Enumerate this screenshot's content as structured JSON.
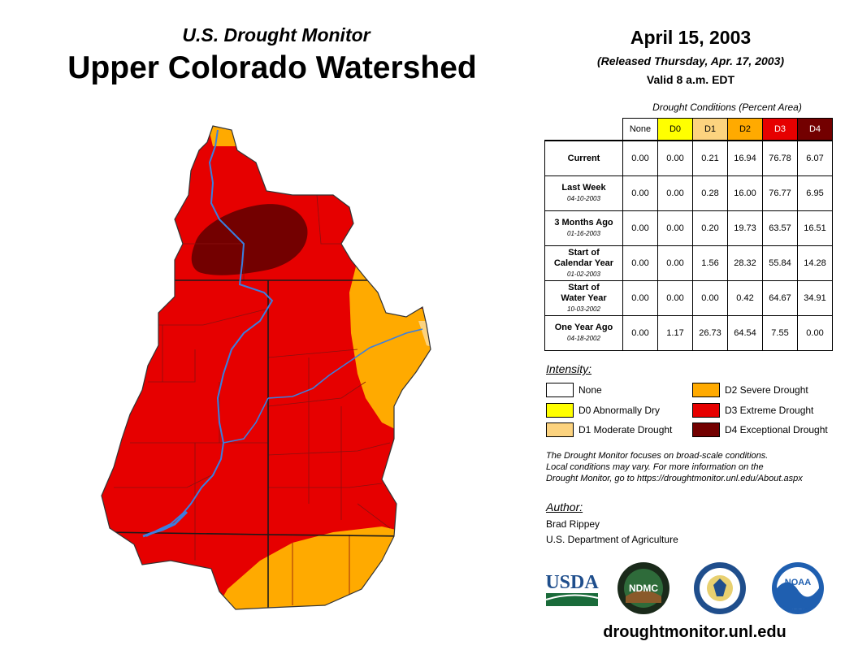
{
  "header": {
    "subtitle": "U.S. Drought Monitor",
    "title": "Upper Colorado Watershed",
    "date": "April 15, 2003",
    "released": "(Released Thursday, Apr. 17, 2003)",
    "valid": "Valid 8 a.m. EDT"
  },
  "table": {
    "caption": "Drought Conditions (Percent Area)",
    "columns": [
      "None",
      "D0",
      "D1",
      "D2",
      "D3",
      "D4"
    ],
    "rows": [
      {
        "label": "Current",
        "label2": "",
        "date": "",
        "values": [
          "0.00",
          "0.00",
          "0.21",
          "16.94",
          "76.78",
          "6.07"
        ]
      },
      {
        "label": "Last Week",
        "label2": "",
        "date": "04-10-2003",
        "values": [
          "0.00",
          "0.00",
          "0.28",
          "16.00",
          "76.77",
          "6.95"
        ]
      },
      {
        "label": "3 Months Ago",
        "label2": "",
        "date": "01-16-2003",
        "values": [
          "0.00",
          "0.00",
          "0.20",
          "19.73",
          "63.57",
          "16.51"
        ]
      },
      {
        "label": "Start of",
        "label2": "Calendar Year",
        "date": "01-02-2003",
        "values": [
          "0.00",
          "0.00",
          "1.56",
          "28.32",
          "55.84",
          "14.28"
        ]
      },
      {
        "label": "Start of",
        "label2": "Water Year",
        "date": "10-03-2002",
        "values": [
          "0.00",
          "0.00",
          "0.00",
          "0.42",
          "64.67",
          "34.91"
        ]
      },
      {
        "label": "One Year Ago",
        "label2": "",
        "date": "04-18-2002",
        "values": [
          "0.00",
          "1.17",
          "26.73",
          "64.54",
          "7.55",
          "0.00"
        ]
      }
    ]
  },
  "colors": {
    "none": "#ffffff",
    "d0": "#ffff00",
    "d1": "#fcd37f",
    "d2": "#ffaa00",
    "d3": "#e60000",
    "d4": "#730000",
    "river": "#3a7fe0"
  },
  "legend": {
    "title": "Intensity:",
    "items": [
      {
        "key": "none",
        "label": "None"
      },
      {
        "key": "d0",
        "label": "D0 Abnormally Dry"
      },
      {
        "key": "d1",
        "label": "D1 Moderate Drought"
      },
      {
        "key": "d2",
        "label": "D2 Severe Drought"
      },
      {
        "key": "d3",
        "label": "D3 Extreme Drought"
      },
      {
        "key": "d4",
        "label": "D4 Exceptional Drought"
      }
    ]
  },
  "note": {
    "line1": "The Drought Monitor focuses on broad-scale conditions.",
    "line2": "Local conditions may vary. For more information on the",
    "line3": "Drought Monitor, go to https://droughtmonitor.unl.edu/About.aspx"
  },
  "author": {
    "title": "Author:",
    "name": "Brad Rippey",
    "org": "U.S. Department of Agriculture"
  },
  "logos": {
    "usda": "USDA",
    "ndmc": "NDMC",
    "noaa": "NOAA"
  },
  "footer": {
    "url": "droughtmonitor.unl.edu"
  }
}
